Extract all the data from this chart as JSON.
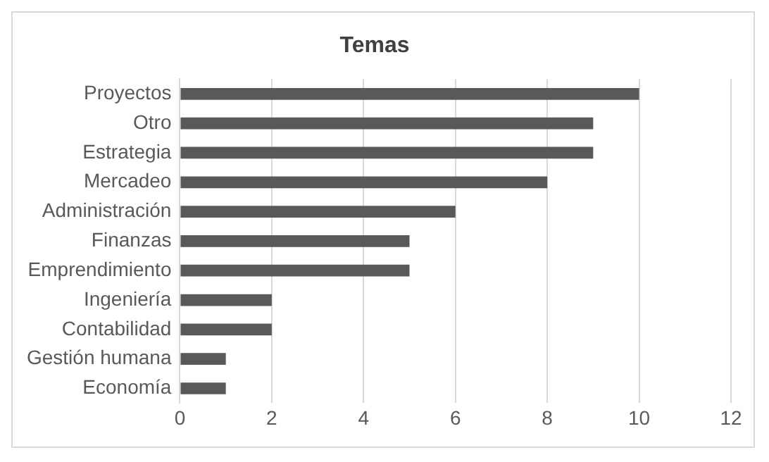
{
  "chart_data": {
    "type": "bar",
    "title": "Temas",
    "orientation": "horizontal",
    "categories": [
      "Proyectos",
      "Otro",
      "Estrategia",
      "Mercadeo",
      "Administración",
      "Finanzas",
      "Emprendimiento",
      "Ingeniería",
      "Contabilidad",
      "Gestión humana",
      "Economía"
    ],
    "values": [
      10,
      9,
      9,
      8,
      6,
      5,
      5,
      2,
      2,
      1,
      1
    ],
    "color": "#595959",
    "xlim": [
      0,
      12
    ],
    "xticks": [
      0,
      2,
      4,
      6,
      8,
      10,
      12
    ],
    "grid": "x",
    "legend": false
  }
}
